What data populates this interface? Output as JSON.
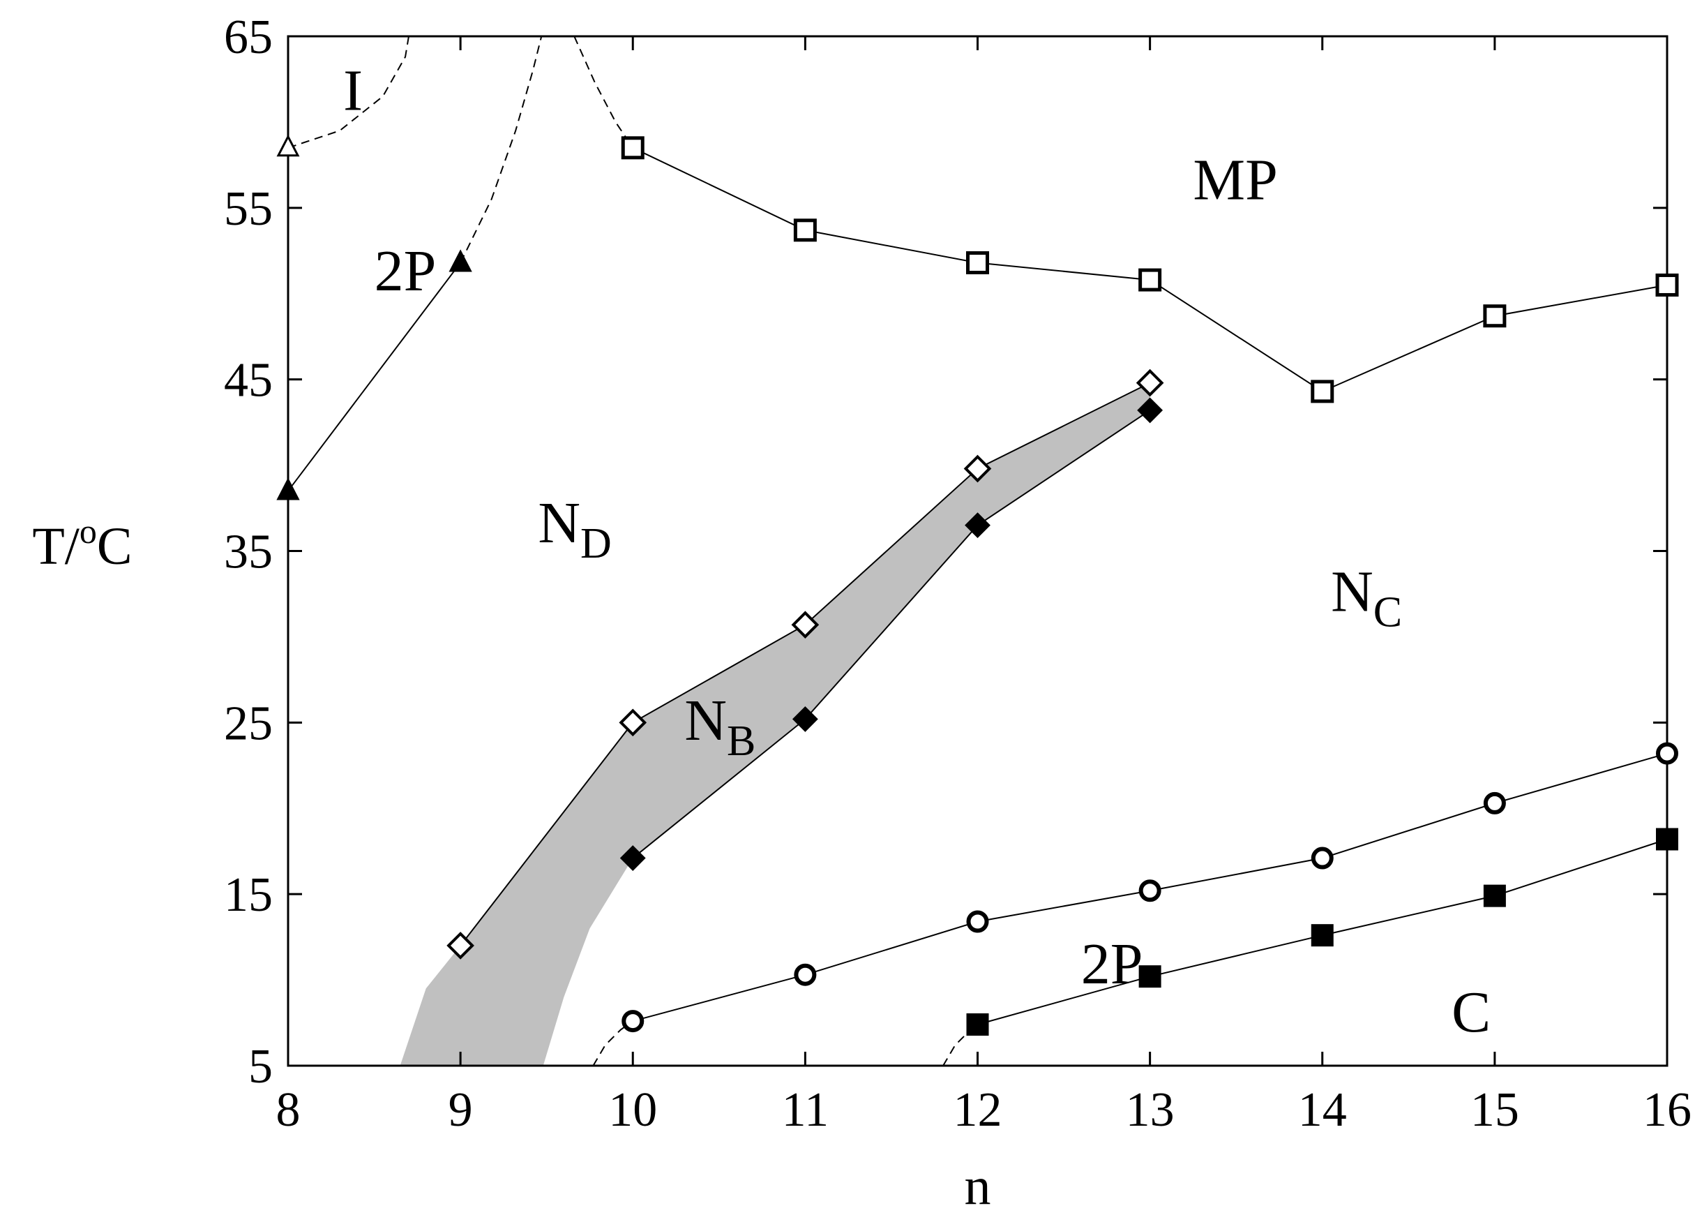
{
  "chart_data": {
    "type": "scatter",
    "title": "",
    "xlabel": "n",
    "ylabel_main": "T/",
    "ylabel_sup": "o",
    "ylabel_end": "C",
    "xlim": [
      8,
      16
    ],
    "ylim": [
      5,
      65
    ],
    "x_ticks": [
      8,
      9,
      10,
      11,
      12,
      13,
      14,
      15,
      16
    ],
    "y_ticks": [
      5,
      15,
      25,
      35,
      45,
      55,
      65
    ],
    "grid": false,
    "colors": {
      "line": "#000000",
      "shaded_region": "#c0c0c0",
      "background": "#ffffff"
    },
    "series": [
      {
        "marker": "open-triangle",
        "connected": false,
        "x": [
          8
        ],
        "y": [
          58.5
        ]
      },
      {
        "marker": "filled-triangle",
        "connected": true,
        "x": [
          8,
          9
        ],
        "y": [
          38.5,
          51.8
        ]
      },
      {
        "marker": "open-square",
        "connected": true,
        "x": [
          10,
          11,
          12,
          13,
          14,
          15,
          16
        ],
        "y": [
          58.5,
          53.7,
          51.8,
          50.8,
          44.3,
          48.7,
          50.5
        ]
      },
      {
        "marker": "open-diamond",
        "connected": true,
        "x": [
          9,
          10,
          11,
          12,
          13
        ],
        "y": [
          12,
          25,
          30.7,
          39.8,
          44.8
        ]
      },
      {
        "marker": "filled-diamond",
        "connected": true,
        "x": [
          10,
          11,
          12,
          13
        ],
        "y": [
          17.1,
          25.2,
          36.5,
          43.2
        ]
      },
      {
        "marker": "open-circle",
        "connected": true,
        "x": [
          10,
          11,
          12,
          13,
          14,
          15,
          16
        ],
        "y": [
          7.6,
          10.3,
          13.4,
          15.2,
          17.1,
          20.3,
          23.2
        ]
      },
      {
        "marker": "filled-square",
        "connected": true,
        "x": [
          12,
          13,
          14,
          15,
          16
        ],
        "y": [
          7.4,
          10.2,
          12.6,
          14.9,
          18.2
        ]
      }
    ],
    "dashed_boundaries": [
      {
        "x": [
          8.0,
          8.3,
          8.55,
          8.68,
          8.7
        ],
        "y": [
          58.5,
          59.5,
          61.5,
          63.8,
          65
        ]
      },
      {
        "x": [
          9.0,
          9.18,
          9.32,
          9.42,
          9.47
        ],
        "y": [
          51.8,
          55.5,
          59.5,
          63.0,
          65
        ]
      },
      {
        "x": [
          9.66,
          9.78,
          9.9,
          10.0
        ],
        "y": [
          65,
          62.3,
          60.0,
          58.5
        ]
      },
      {
        "x": [
          9.77,
          9.84,
          9.93,
          10.0
        ],
        "y": [
          5,
          6.2,
          7.1,
          7.6
        ]
      },
      {
        "x": [
          11.8,
          11.87,
          11.95,
          12.0
        ],
        "y": [
          5,
          6.2,
          7.0,
          7.4
        ]
      }
    ],
    "shaded_region": {
      "upper": {
        "x": [
          8.65,
          8.8,
          9.0,
          10.0,
          11.0,
          12.0,
          13.0
        ],
        "y": [
          5,
          9.5,
          12,
          25,
          30.7,
          39.8,
          44.8
        ]
      },
      "lower": {
        "x": [
          13.0,
          12.0,
          11.0,
          10.0,
          9.75,
          9.6,
          9.48
        ],
        "y": [
          43.2,
          36.5,
          25.2,
          17.1,
          13.0,
          9.0,
          5
        ]
      }
    },
    "region_labels": [
      {
        "text": "I",
        "sub": "",
        "x": 8.32,
        "y": 60.7
      },
      {
        "text": "2P",
        "sub": "",
        "x": 8.5,
        "y": 50.2
      },
      {
        "text": "MP",
        "sub": "",
        "x": 13.25,
        "y": 55.5
      },
      {
        "text": "N",
        "sub": "D",
        "x": 9.45,
        "y": 35.5
      },
      {
        "text": "N",
        "sub": "C",
        "x": 14.05,
        "y": 31.5
      },
      {
        "text": "N",
        "sub": "B",
        "x": 10.3,
        "y": 24.0
      },
      {
        "text": "2P",
        "sub": "",
        "x": 12.6,
        "y": 9.8
      },
      {
        "text": "C",
        "sub": "",
        "x": 14.75,
        "y": 7.0
      }
    ]
  }
}
